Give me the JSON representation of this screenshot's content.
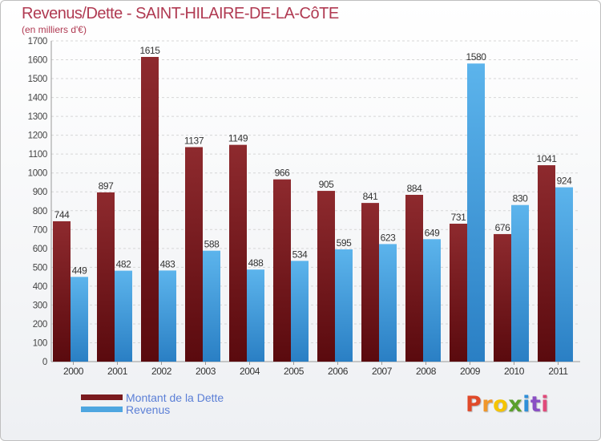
{
  "title": "Revenus/Dette - SAINT-HILAIRE-DE-LA-CôTE",
  "subtitle": "(en milliers d'€)",
  "chart_data": {
    "type": "bar",
    "categories": [
      "2000",
      "2001",
      "2002",
      "2003",
      "2004",
      "2005",
      "2006",
      "2007",
      "2008",
      "2009",
      "2010",
      "2011"
    ],
    "series": [
      {
        "name": "Montant de la Dette",
        "color": "#7a1a1e",
        "values": [
          744,
          897,
          1615,
          1137,
          1149,
          966,
          905,
          841,
          884,
          731,
          676,
          1041
        ]
      },
      {
        "name": "Revenus",
        "color": "#4ea6e0",
        "values": [
          449,
          482,
          483,
          588,
          488,
          534,
          595,
          623,
          649,
          1580,
          830,
          924
        ]
      }
    ],
    "y_ticks": [
      0,
      100,
      200,
      300,
      400,
      500,
      600,
      700,
      800,
      900,
      1000,
      1100,
      1200,
      1300,
      1400,
      1500,
      1600,
      1700
    ],
    "ylim": [
      0,
      1700
    ],
    "grid": true,
    "legend_position": "bottom-left"
  },
  "legend": {
    "items": [
      {
        "label": "Montant de la Dette",
        "color": "#7a1a1e"
      },
      {
        "label": "Revenus",
        "color": "#4ea6e0"
      }
    ]
  },
  "logo": {
    "letters": [
      {
        "char": "P",
        "color": "#e04a2a"
      },
      {
        "char": "r",
        "color": "#f0962a"
      },
      {
        "char": "o",
        "color": "#f5c400"
      },
      {
        "char": "x",
        "color": "#5aa02c"
      },
      {
        "char": "i",
        "color": "#2f8fd8"
      },
      {
        "char": "t",
        "color": "#8a4fc4"
      },
      {
        "char": "i",
        "color": "#e04a7a"
      }
    ]
  }
}
